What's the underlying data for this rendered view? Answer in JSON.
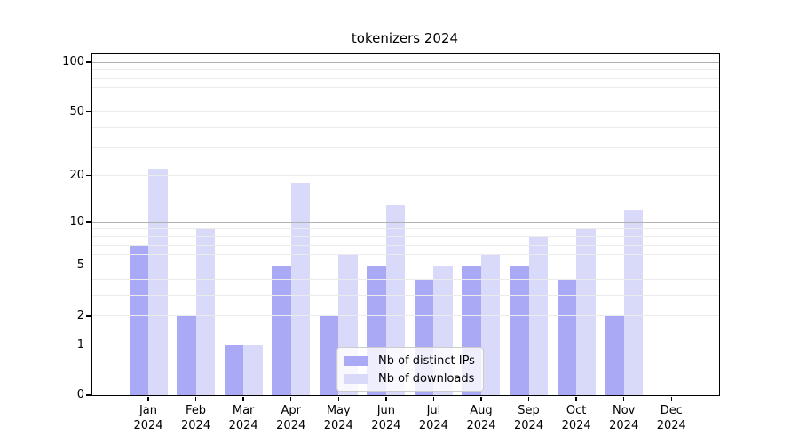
{
  "chart_data": {
    "type": "bar",
    "title": "tokenizers 2024",
    "categories": [
      "Jan 2024",
      "Feb 2024",
      "Mar 2024",
      "Apr 2024",
      "May 2024",
      "Jun 2024",
      "Jul 2024",
      "Aug 2024",
      "Sep 2024",
      "Oct 2024",
      "Nov 2024",
      "Dec 2024"
    ],
    "series": [
      {
        "name": "Nb of distinct IPs",
        "color": "#a9a9f5",
        "values": [
          7,
          2,
          1,
          5,
          2,
          5,
          4,
          5,
          5,
          4,
          2,
          0
        ]
      },
      {
        "name": "Nb of downloads",
        "color": "#d9d9f9",
        "values": [
          22,
          9,
          1,
          18,
          6,
          13,
          5,
          6,
          8,
          9,
          12,
          0
        ]
      }
    ],
    "yscale": "log1p",
    "yticks": [
      0,
      1,
      2,
      5,
      10,
      20,
      50,
      100
    ],
    "gridlines_major": [
      1,
      10,
      100
    ],
    "gridlines_minor": [
      2,
      3,
      4,
      5,
      6,
      7,
      8,
      9,
      20,
      30,
      40,
      50,
      60,
      70,
      80,
      90
    ],
    "ylim": [
      0,
      112
    ],
    "grid": true,
    "legend_position": "lower center",
    "colors": {
      "grid_major": "#b0b0b0",
      "grid_minor": "#ebebeb",
      "axis": "#000000",
      "background": "#ffffff"
    }
  }
}
